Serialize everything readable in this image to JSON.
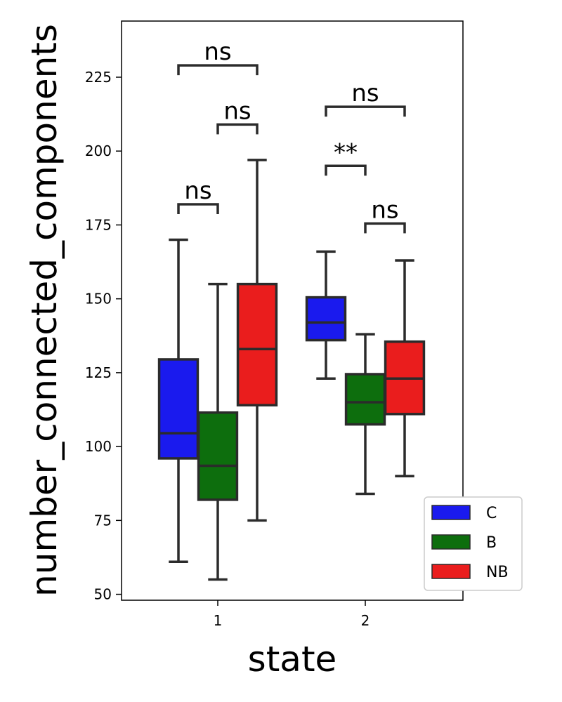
{
  "chart_data": {
    "type": "box",
    "xlabel": "state",
    "ylabel": "number_connected_components",
    "categories": [
      "1",
      "2"
    ],
    "ylim": [
      48,
      244
    ],
    "yticks": [
      50,
      75,
      100,
      125,
      150,
      175,
      200,
      225
    ],
    "series": [
      {
        "name": "C",
        "color": "#1a1aee",
        "boxes": [
          {
            "category": "1",
            "whisker_low": 61,
            "q1": 96,
            "median": 104.5,
            "q3": 129.5,
            "whisker_high": 170
          },
          {
            "category": "2",
            "whisker_low": 123,
            "q1": 136,
            "median": 142,
            "q3": 150.5,
            "whisker_high": 166
          }
        ]
      },
      {
        "name": "B",
        "color": "#0d6e0d",
        "boxes": [
          {
            "category": "1",
            "whisker_low": 55,
            "q1": 82,
            "median": 93.5,
            "q3": 111.5,
            "whisker_high": 155
          },
          {
            "category": "2",
            "whisker_low": 84,
            "q1": 107.5,
            "median": 115,
            "q3": 124.5,
            "whisker_high": 138
          }
        ]
      },
      {
        "name": "NB",
        "color": "#ea1d1d",
        "boxes": [
          {
            "category": "1",
            "whisker_low": 75,
            "q1": 114,
            "median": 133,
            "q3": 155,
            "whisker_high": 197
          },
          {
            "category": "2",
            "whisker_low": 90,
            "q1": 111,
            "median": 123,
            "q3": 135.5,
            "whisker_high": 163
          }
        ]
      }
    ],
    "annotations": [
      {
        "category": "1",
        "from": "C",
        "to": "B",
        "y": 182,
        "label": "ns"
      },
      {
        "category": "1",
        "from": "B",
        "to": "NB",
        "y": 209,
        "label": "ns"
      },
      {
        "category": "1",
        "from": "C",
        "to": "NB",
        "y": 229,
        "label": "ns"
      },
      {
        "category": "2",
        "from": "C",
        "to": "B",
        "y": 195,
        "label": "**"
      },
      {
        "category": "2",
        "from": "B",
        "to": "NB",
        "y": 175.5,
        "label": "ns"
      },
      {
        "category": "2",
        "from": "C",
        "to": "NB",
        "y": 215,
        "label": "ns"
      }
    ],
    "legend": {
      "placement": "lower-right",
      "entries": [
        "C",
        "B",
        "NB"
      ]
    }
  }
}
